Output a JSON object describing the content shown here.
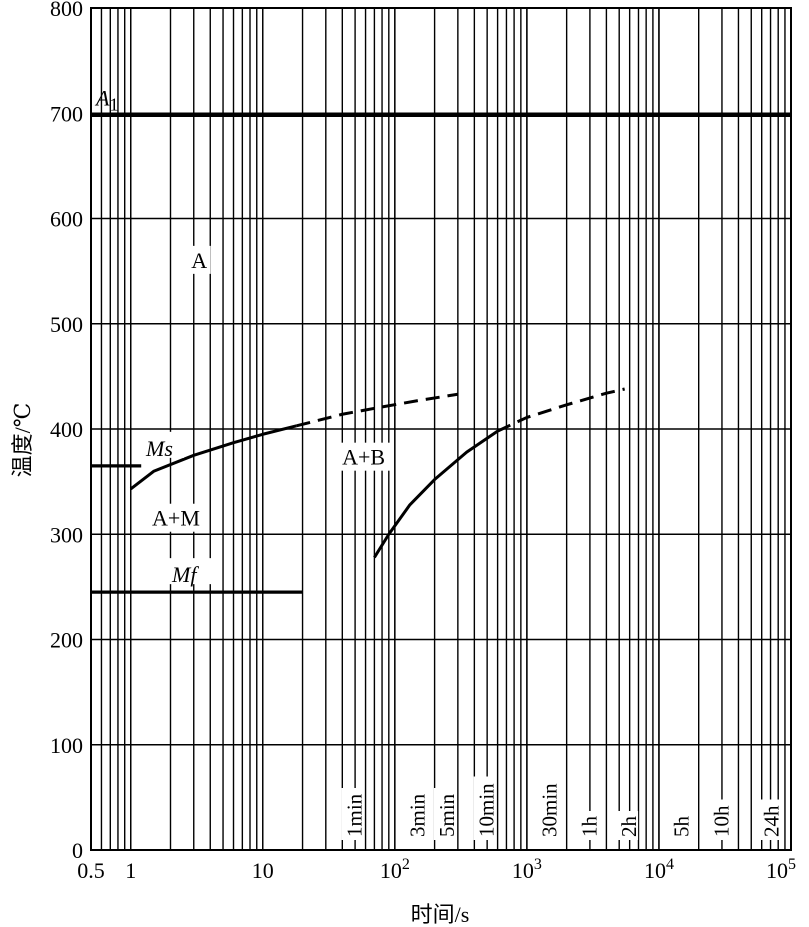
{
  "chart_data": {
    "type": "line",
    "xlabel": "时间/s",
    "ylabel": "温度/℃",
    "x_scale": "log",
    "xlim": [
      0.5,
      100000
    ],
    "ylim": [
      0,
      800
    ],
    "grid": true,
    "y_ticks": [
      "0",
      "100",
      "200",
      "300",
      "400",
      "500",
      "600",
      "700",
      "800"
    ],
    "x_ticks": [
      {
        "value": 0.5,
        "label": "0.5"
      },
      {
        "value": 1,
        "label": "1"
      },
      {
        "value": 10,
        "label": "10"
      },
      {
        "value": 100,
        "base": "10",
        "exp": "2"
      },
      {
        "value": 1000,
        "base": "10",
        "exp": "3"
      },
      {
        "value": 10000,
        "base": "10",
        "exp": "4"
      },
      {
        "value": 100000,
        "base": "10",
        "exp": "5"
      }
    ],
    "time_marks": [
      {
        "x": 60,
        "label": "1min"
      },
      {
        "x": 180,
        "label": "3min"
      },
      {
        "x": 300,
        "label": "5min"
      },
      {
        "x": 600,
        "label": "10min"
      },
      {
        "x": 1800,
        "label": "30min"
      },
      {
        "x": 3600,
        "label": "1h"
      },
      {
        "x": 7200,
        "label": "2h"
      },
      {
        "x": 18000,
        "label": "5h"
      },
      {
        "x": 36000,
        "label": "10h"
      },
      {
        "x": 86400,
        "label": "24h"
      }
    ],
    "hlines": [
      {
        "name": "A1",
        "base": "A",
        "sub": "1",
        "y": 698,
        "x_start": 0.5,
        "x_end": 100000
      },
      {
        "name": "Ms",
        "label": "Ms",
        "y": 365,
        "x_start": 0.5,
        "x_end": 1.2
      },
      {
        "name": "Mf",
        "label": "Mf",
        "y": 245,
        "x_start": 0.5,
        "x_end": 20
      }
    ],
    "series": [
      {
        "line": "solid",
        "points": [
          [
            1,
            343
          ],
          [
            1.5,
            360
          ],
          [
            3,
            375
          ],
          [
            6,
            387
          ],
          [
            10,
            395
          ],
          [
            18,
            403
          ]
        ]
      },
      {
        "line": "dashed",
        "points": [
          [
            18,
            403
          ],
          [
            40,
            414
          ],
          [
            80,
            421
          ],
          [
            150,
            427
          ],
          [
            300,
            433
          ]
        ]
      },
      {
        "line": "solid",
        "points": [
          [
            70,
            278
          ],
          [
            90,
            300
          ],
          [
            130,
            328
          ],
          [
            200,
            352
          ],
          [
            350,
            378
          ],
          [
            600,
            398
          ]
        ]
      },
      {
        "line": "dashed",
        "points": [
          [
            600,
            398
          ],
          [
            1000,
            411
          ],
          [
            2000,
            423
          ],
          [
            4000,
            434
          ],
          [
            5500,
            438
          ]
        ]
      }
    ],
    "annotations": [
      {
        "text": "A",
        "x": 3.3,
        "y": 555
      },
      {
        "text": "A+B",
        "x": 58,
        "y": 368
      },
      {
        "text": "A+M",
        "x": 2.2,
        "y": 310
      }
    ]
  }
}
